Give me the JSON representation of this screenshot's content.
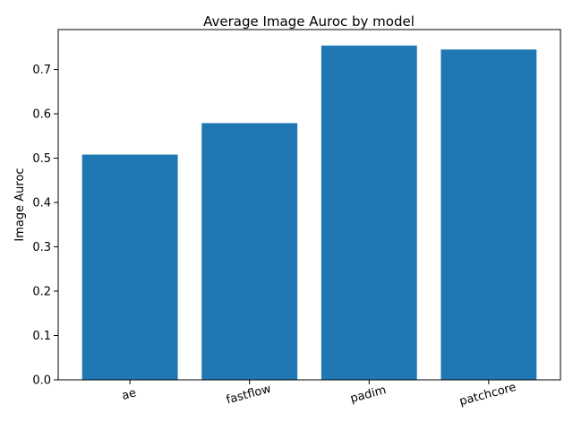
{
  "chart_data": {
    "type": "bar",
    "title": "Average Image Auroc by model",
    "xlabel": "",
    "ylabel": "Image Auroc",
    "categories": [
      "ae",
      "fastflow",
      "padim",
      "patchcore"
    ],
    "values": [
      0.508,
      0.579,
      0.754,
      0.745
    ],
    "ylim": [
      0,
      0.79
    ],
    "yticks": [
      "0.0",
      "0.1",
      "0.2",
      "0.3",
      "0.4",
      "0.5",
      "0.6",
      "0.7"
    ],
    "xtick_rotation": "slanted",
    "grid": false,
    "legend": "none",
    "bar_color": "#1f77b4"
  }
}
